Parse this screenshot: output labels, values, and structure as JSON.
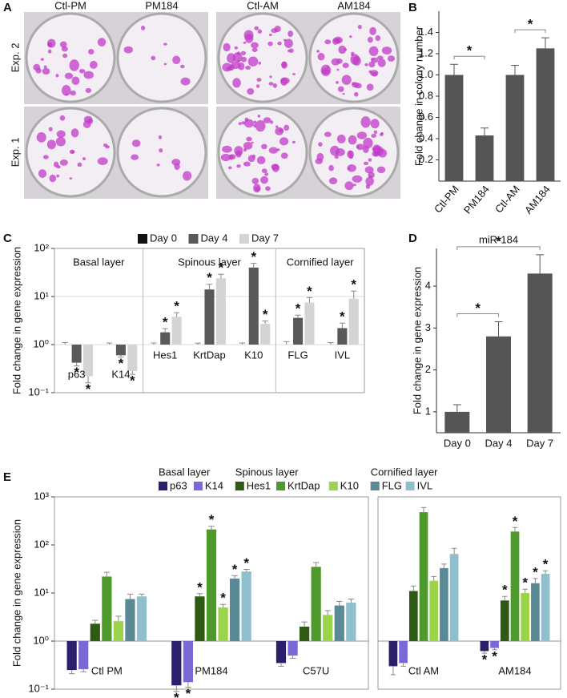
{
  "panel_labels": [
    "A",
    "B",
    "C",
    "D",
    "E"
  ],
  "photos": {
    "columns": [
      "Ctl-PM",
      "PM184",
      "Ctl-AM",
      "AM184"
    ],
    "rows": [
      "Exp. 2",
      "Exp. 1"
    ]
  },
  "chart_data": [
    {
      "type": "bar",
      "ylabel": "Fold change in colony number",
      "categories": [
        "Ctl-PM",
        "PM184",
        "Ctl-AM",
        "AM184"
      ],
      "values": [
        1.0,
        0.43,
        1.0,
        1.25
      ],
      "errors": [
        0.1,
        0.07,
        0.09,
        0.1
      ],
      "color": "#555555",
      "ylim": [
        0,
        1.6
      ],
      "yticks": [
        0.2,
        0.4,
        0.6,
        0.8,
        {
          "value": 1,
          "label": "1.0"
        },
        1.2,
        1.4
      ],
      "comparisons": [
        {
          "pair": [
            0,
            1
          ],
          "label": "*"
        },
        {
          "pair": [
            2,
            3
          ],
          "label": "*"
        }
      ]
    },
    {
      "type": "grouped_bar",
      "log_scale": true,
      "grid": true,
      "ylabel": "Fold change in gene expression",
      "categories": [
        "p63",
        "K14",
        "Hes1",
        "KrtDap",
        "K10",
        "FLG",
        "IVL"
      ],
      "groups": [
        {
          "title": "Basal layer",
          "size": 2
        },
        {
          "title": "Spinous layer",
          "size": 3
        },
        {
          "title": "Cornified layer",
          "size": 2
        }
      ],
      "sig_label": "*",
      "series": [
        {
          "name": "Day 0",
          "color": "#111111",
          "values": [
            1,
            1,
            1,
            1,
            1,
            1,
            1
          ],
          "errors": [
            0.1,
            0.08,
            0.08,
            0.07,
            0.08,
            0.15,
            0.1
          ],
          "significant": [
            false,
            false,
            false,
            false,
            false,
            false,
            false
          ]
        },
        {
          "name": "Day 4",
          "color": "#595959",
          "values": [
            0.42,
            0.6,
            1.8,
            14,
            40,
            3.6,
            2.2
          ],
          "errors": [
            0.06,
            0.05,
            0.35,
            4,
            9,
            0.5,
            0.6
          ],
          "significant": [
            true,
            true,
            true,
            true,
            true,
            true,
            true
          ]
        },
        {
          "name": "Day 7",
          "color": "#d4d4d4",
          "values": [
            0.22,
            0.28,
            3.8,
            24,
            2.7,
            7.5,
            9
          ],
          "errors": [
            0.06,
            0.04,
            0.8,
            5,
            0.4,
            2,
            4
          ],
          "significant": [
            true,
            true,
            true,
            true,
            true,
            true,
            true
          ]
        }
      ],
      "ylim": [
        0.1,
        100
      ],
      "yticks": [
        {
          "value": 0.1,
          "label": "10⁻¹"
        },
        {
          "value": 1,
          "label": "10⁰"
        },
        {
          "value": 10,
          "label": "10¹"
        },
        {
          "value": 100,
          "label": "10²"
        }
      ]
    },
    {
      "type": "bar",
      "title": "miR-184",
      "ylabel": "Fold change in gene expression",
      "categories": [
        "Day 0",
        "Day 4",
        "Day 7"
      ],
      "values": [
        1,
        2.8,
        4.3
      ],
      "errors": [
        0.17,
        0.35,
        0.45
      ],
      "color": "#555555",
      "ylim": [
        0.5,
        4.9
      ],
      "yticks": [
        1,
        2,
        3,
        4
      ],
      "comparisons": [
        {
          "pair": [
            0,
            1
          ],
          "label": "*"
        },
        {
          "pair": [
            0,
            2
          ],
          "label": "*"
        }
      ]
    },
    {
      "type": "grouped_bar",
      "log_scale": true,
      "ylabel": "Fold change in gene expression",
      "categories": [
        "Ctl PM",
        "PM184",
        "C57U",
        "Ctl AM",
        "AM184"
      ],
      "facet_sizes": [
        3,
        2
      ],
      "legend_groups": [
        {
          "title": "Basal layer",
          "size": 2
        },
        {
          "title": "Spinous layer",
          "size": 3
        },
        {
          "title": "Cornified layer",
          "size": 2
        }
      ],
      "sig_label": "*",
      "series": [
        {
          "name": "p63",
          "color": "#2a1f6b",
          "values": [
            0.25,
            0.12,
            0.35,
            0.3,
            0.62
          ],
          "errors": [
            0.04,
            0.03,
            0.05,
            0.1,
            0.06
          ],
          "significant": [
            false,
            true,
            false,
            false,
            true
          ]
        },
        {
          "name": "K14",
          "color": "#7b68d6",
          "values": [
            0.26,
            0.14,
            0.5,
            0.35,
            0.72
          ],
          "errors": [
            0.03,
            0.03,
            0.06,
            0.05,
            0.06
          ],
          "significant": [
            false,
            true,
            false,
            false,
            true
          ]
        },
        {
          "name": "Hes1",
          "color": "#2f5a14",
          "values": [
            2.3,
            8.5,
            2.0,
            11,
            7
          ],
          "errors": [
            0.4,
            1.2,
            0.5,
            3,
            1.5
          ],
          "significant": [
            false,
            true,
            false,
            false,
            true
          ]
        },
        {
          "name": "KrtDap",
          "color": "#4f9a2c",
          "values": [
            22,
            210,
            35,
            480,
            190
          ],
          "errors": [
            5,
            35,
            8,
            120,
            40
          ],
          "significant": [
            false,
            true,
            false,
            false,
            true
          ]
        },
        {
          "name": "K10",
          "color": "#9bd44a",
          "values": [
            2.6,
            5,
            3.5,
            18,
            10
          ],
          "errors": [
            0.7,
            0.8,
            0.8,
            4,
            2
          ],
          "significant": [
            false,
            true,
            false,
            false,
            true
          ]
        },
        {
          "name": "FLG",
          "color": "#5a8a96",
          "values": [
            7.5,
            20,
            5.5,
            33,
            16
          ],
          "errors": [
            2,
            3,
            1.2,
            7,
            4
          ],
          "significant": [
            false,
            true,
            false,
            false,
            true
          ]
        },
        {
          "name": "IVL",
          "color": "#8fbfcc",
          "values": [
            8.5,
            28,
            6.3,
            65,
            25
          ],
          "errors": [
            1,
            3,
            1.2,
            20,
            4
          ],
          "significant": [
            false,
            true,
            false,
            false,
            true
          ]
        }
      ],
      "ylim": [
        0.1,
        1000
      ],
      "yticks": [
        {
          "value": 0.1,
          "label": "10⁻¹"
        },
        {
          "value": 1,
          "label": "10⁰"
        },
        {
          "value": 10,
          "label": "10¹"
        },
        {
          "value": 100,
          "label": "10²"
        },
        {
          "value": 1000,
          "label": "10³"
        }
      ]
    }
  ]
}
